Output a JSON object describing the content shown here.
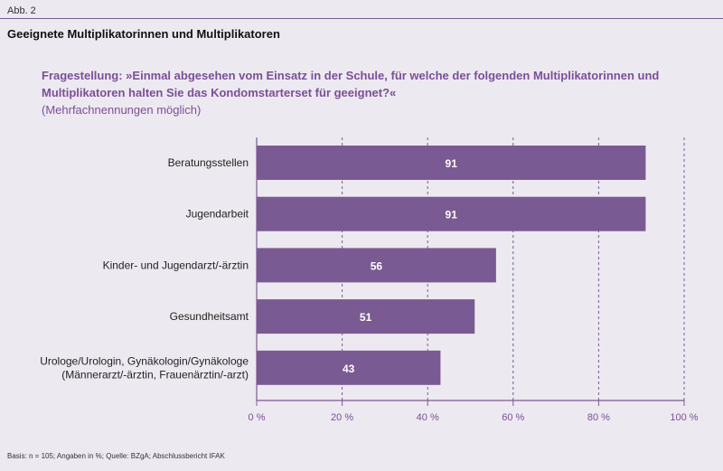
{
  "figure_label": "Abb. 2",
  "figure_title": "Geeignete Multiplikatorinnen und Multiplikatoren",
  "question_text": "Fragestellung: »Einmal abgesehen vom Einsatz in der Schule, für welche der folgenden Multiplikatorinnen und Multiplikatoren halten Sie das Kondomstarterset für geeignet?«",
  "question_note": "(Mehrfachnennungen möglich)",
  "source_text": "Basis: n = 105; Angaben in %; Quelle: BZgA; Abschlussbericht IFAK",
  "colors": {
    "bar": "#7a5a93",
    "axis_text": "#7b4f99",
    "grid": "#7a5a93"
  },
  "chart_data": {
    "type": "bar",
    "orientation": "horizontal",
    "categories": [
      [
        "Beratungsstellen"
      ],
      [
        "Jugendarbeit"
      ],
      [
        "Kinder- und Jugendarzt/-ärztin"
      ],
      [
        "Gesundheitsamt"
      ],
      [
        "Urologe/Urologin, Gynäkologin/Gynäkologe",
        "(Männerarzt/-ärztin, Frauenärztin/-arzt)"
      ]
    ],
    "values": [
      91,
      91,
      56,
      51,
      43
    ],
    "xlim": [
      0,
      100
    ],
    "ticks": [
      0,
      20,
      40,
      60,
      80,
      100
    ],
    "tick_labels": [
      "0 %",
      "20 %",
      "40 %",
      "60 %",
      "80 %",
      "100 %"
    ],
    "unit": "%",
    "grid": true
  }
}
